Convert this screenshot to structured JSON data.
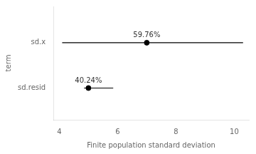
{
  "chart_data": {
    "type": "scatter",
    "xlabel": "Finite population standard deviation",
    "ylabel": "term",
    "xlim": [
      3.8,
      10.5
    ],
    "xticks": [
      4,
      6,
      8,
      10
    ],
    "ylim": [
      0.3,
      2.8
    ],
    "yticks": [
      {
        "value": 1,
        "label": "sd.resid"
      },
      {
        "value": 2,
        "label": "sd.x"
      }
    ],
    "grid": false,
    "series": [
      {
        "x": [
          7.0,
          5.0
        ],
        "values": [
          2,
          1
        ],
        "x_low": [
          4.1,
          4.85
        ],
        "x_high": [
          10.3,
          5.85
        ],
        "annotations": [
          "59.76%",
          "40.24%"
        ],
        "color": "#000000"
      }
    ]
  }
}
